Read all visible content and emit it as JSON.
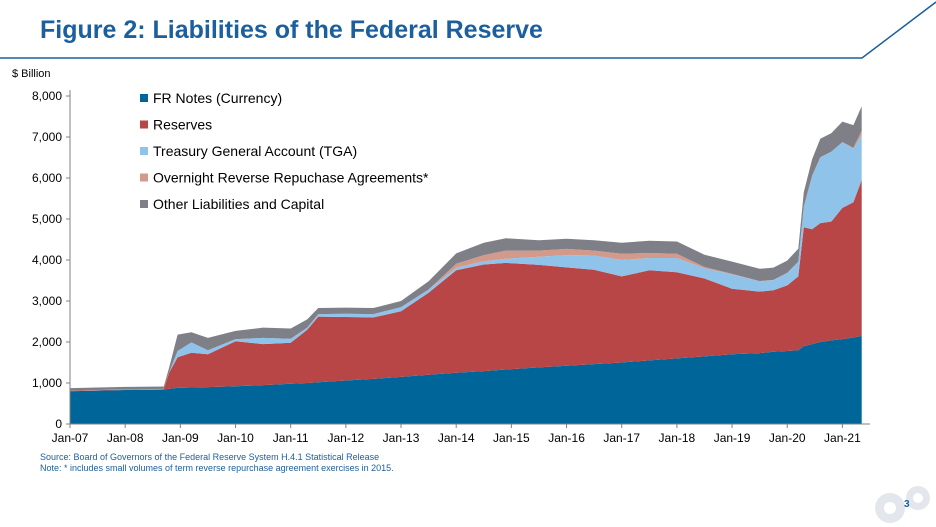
{
  "slide": {
    "title": "Figure 2: Liabilities of the Federal Reserve",
    "unit_label": "$ Billion",
    "source": "Source: Board of Governors of the Federal Reserve System H.4.1 Statistical Release",
    "note": "Note: * includes small volumes of term reverse repurchase agreement exercises in 2015.",
    "page_number": "3",
    "accent_color": "#1b5f9e"
  },
  "chart_data": {
    "type": "area",
    "stacked": true,
    "title": "",
    "xlabel": "",
    "ylabel": "$ Billion",
    "ylim": [
      0,
      8000
    ],
    "yticks": [
      0,
      1000,
      2000,
      3000,
      4000,
      5000,
      6000,
      7000,
      8000
    ],
    "ytick_labels": [
      "0",
      "1,000",
      "2,000",
      "3,000",
      "4,000",
      "5,000",
      "6,000",
      "7,000",
      "8,000"
    ],
    "xlim": [
      2007.0,
      2021.5
    ],
    "xticks": [
      2007,
      2008,
      2009,
      2010,
      2011,
      2012,
      2013,
      2014,
      2015,
      2016,
      2017,
      2018,
      2019,
      2020,
      2021
    ],
    "xtick_labels": [
      "Jan-07",
      "Jan-08",
      "Jan-09",
      "Jan-10",
      "Jan-11",
      "Jan-12",
      "Jan-13",
      "Jan-14",
      "Jan-15",
      "Jan-16",
      "Jan-17",
      "Jan-18",
      "Jan-19",
      "Jan-20",
      "Jan-21"
    ],
    "legend_position": "top-left",
    "grid": false,
    "x": [
      2007.0,
      2008.0,
      2008.7,
      2008.8,
      2008.95,
      2009.2,
      2009.5,
      2010.0,
      2010.5,
      2011.0,
      2011.3,
      2011.5,
      2012.0,
      2012.5,
      2013.0,
      2013.5,
      2014.0,
      2014.5,
      2014.9,
      2015.5,
      2016.0,
      2016.5,
      2017.0,
      2017.5,
      2018.0,
      2018.5,
      2019.0,
      2019.5,
      2019.75,
      2020.0,
      2020.2,
      2020.3,
      2020.45,
      2020.6,
      2020.8,
      2021.0,
      2021.2,
      2021.35
    ],
    "series": [
      {
        "name": "FR Notes (Currency)",
        "color": "#006699",
        "values": [
          800,
          830,
          840,
          860,
          880,
          890,
          900,
          920,
          950,
          980,
          1000,
          1020,
          1060,
          1100,
          1150,
          1200,
          1250,
          1290,
          1330,
          1380,
          1420,
          1460,
          1500,
          1550,
          1600,
          1650,
          1700,
          1730,
          1760,
          1780,
          1800,
          1900,
          1950,
          2000,
          2040,
          2070,
          2110,
          2150
        ]
      },
      {
        "name": "Reserves",
        "color": "#b84646",
        "values": [
          10,
          10,
          10,
          400,
          750,
          850,
          800,
          1100,
          1000,
          1000,
          1300,
          1600,
          1550,
          1500,
          1600,
          2000,
          2500,
          2600,
          2600,
          2500,
          2400,
          2300,
          2100,
          2200,
          2100,
          1900,
          1600,
          1500,
          1500,
          1600,
          1800,
          2900,
          2800,
          2900,
          2900,
          3200,
          3300,
          3800
        ]
      },
      {
        "name": "Treasury General Account (TGA)",
        "color": "#8fc3ea",
        "values": [
          5,
          5,
          5,
          10,
          150,
          250,
          100,
          50,
          150,
          100,
          50,
          60,
          80,
          80,
          100,
          80,
          60,
          80,
          100,
          200,
          300,
          350,
          400,
          300,
          350,
          250,
          350,
          250,
          250,
          300,
          350,
          500,
          1300,
          1600,
          1700,
          1600,
          1300,
          1100
        ]
      },
      {
        "name": "Overnight Reverse Repuchase Agreements*",
        "color": "#d39a8c",
        "values": [
          0,
          0,
          0,
          0,
          0,
          0,
          0,
          0,
          0,
          0,
          0,
          0,
          0,
          0,
          0,
          0,
          100,
          150,
          200,
          150,
          150,
          120,
          150,
          120,
          100,
          30,
          10,
          5,
          5,
          5,
          5,
          5,
          5,
          5,
          5,
          5,
          30,
          100
        ]
      },
      {
        "name": "Other Liabilities and Capital",
        "color": "#7f8087",
        "values": [
          60,
          60,
          60,
          120,
          400,
          250,
          300,
          200,
          250,
          250,
          200,
          150,
          150,
          150,
          150,
          200,
          250,
          300,
          300,
          250,
          250,
          250,
          270,
          300,
          300,
          300,
          300,
          300,
          300,
          300,
          320,
          350,
          400,
          450,
          450,
          500,
          550,
          600
        ]
      }
    ]
  }
}
